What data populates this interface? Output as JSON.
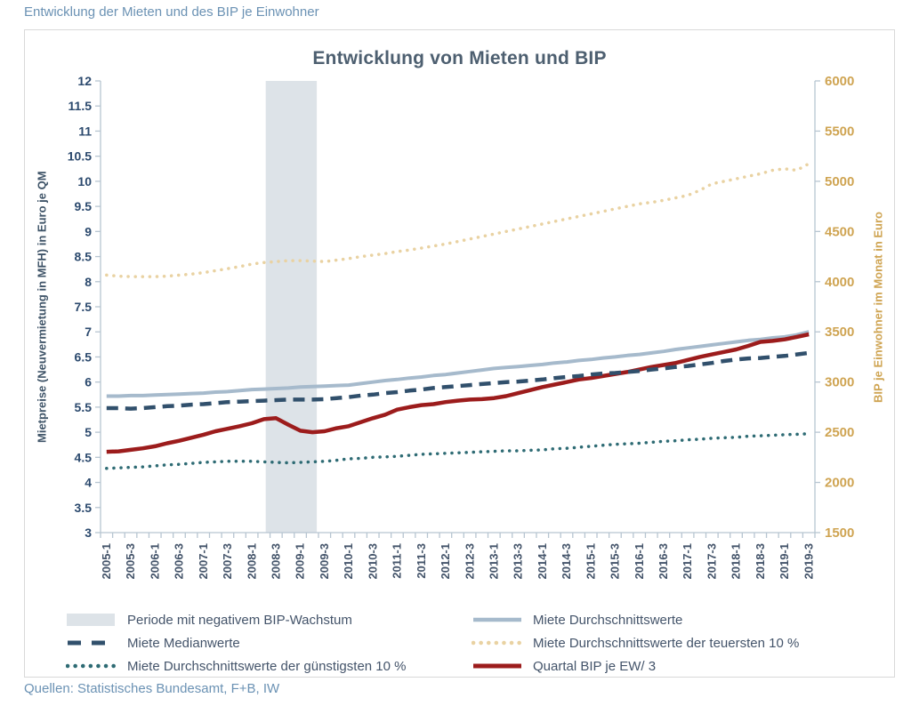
{
  "header": {
    "title": "Entwicklung der Mieten und des BIP je Einwohner"
  },
  "footer": {
    "source": "Quellen: Statistisches Bundesamt, F+B, IW"
  },
  "colors": {
    "accent_title": "#6b92b4",
    "chart_title": "#4d5f70",
    "axis_line": "#b7c5d1",
    "left_axis_text": "#2c4a6e",
    "right_axis_text": "#cfa452",
    "x_axis_text": "#44546a",
    "legend_text": "#44546a",
    "band": "#dde3e8",
    "series_blue": "#a6bacc",
    "series_navy": "#31506c",
    "series_tan": "#e9d2a2",
    "series_teal": "#2e6b74",
    "series_red": "#9c1c1c",
    "frame_border": "#d9d9d9"
  },
  "chart_data": {
    "type": "line",
    "title": "Entwicklung von Mieten und BIP",
    "ylabel_left": "Mietpreise (Neuvermietung in MFH) in Euro je QM",
    "ylabel_right": "BIP je Einwohner im Monat in Euro",
    "ylim_left": [
      3,
      12
    ],
    "ytick_step_left": 0.5,
    "ylim_right": [
      1500,
      6000
    ],
    "ytick_step_right": 500,
    "x_label_every": 2,
    "grid": false,
    "legend_position": "bottom",
    "quarters": [
      "2005-1",
      "2005-2",
      "2005-3",
      "2005-4",
      "2006-1",
      "2006-2",
      "2006-3",
      "2006-4",
      "2007-1",
      "2007-2",
      "2007-3",
      "2007-4",
      "2008-1",
      "2008-2",
      "2008-3",
      "2008-4",
      "2009-1",
      "2009-2",
      "2009-3",
      "2009-4",
      "2010-1",
      "2010-2",
      "2010-3",
      "2010-4",
      "2011-1",
      "2011-2",
      "2011-3",
      "2011-4",
      "2012-1",
      "2012-2",
      "2012-3",
      "2012-4",
      "2013-1",
      "2013-2",
      "2013-3",
      "2013-4",
      "2014-1",
      "2014-2",
      "2014-3",
      "2014-4",
      "2015-1",
      "2015-2",
      "2015-3",
      "2015-4",
      "2016-1",
      "2016-2",
      "2016-3",
      "2016-4",
      "2017-1",
      "2017-2",
      "2017-3",
      "2017-4",
      "2018-1",
      "2018-2",
      "2018-3",
      "2018-4",
      "2019-1",
      "2019-2",
      "2019-3"
    ],
    "recession_band": {
      "label": "Periode mit negativem BIP-Wachstum",
      "from": "2008-2",
      "to": "2009-2"
    },
    "series": [
      {
        "id": "teuerste10",
        "name": "Miete Durchschnittswerte der teuersten 10 %",
        "axis": "left",
        "unit": "Euro je QM",
        "style": "dotted",
        "color": "#e9d2a2",
        "width": 3.5,
        "values": [
          8.13,
          8.11,
          8.1,
          8.1,
          8.1,
          8.11,
          8.13,
          8.15,
          8.18,
          8.22,
          8.26,
          8.3,
          8.35,
          8.38,
          8.4,
          8.42,
          8.42,
          8.41,
          8.4,
          8.43,
          8.46,
          8.5,
          8.53,
          8.56,
          8.6,
          8.63,
          8.67,
          8.71,
          8.75,
          8.8,
          8.85,
          8.9,
          8.95,
          9.0,
          9.05,
          9.1,
          9.15,
          9.2,
          9.25,
          9.3,
          9.35,
          9.4,
          9.45,
          9.5,
          9.55,
          9.58,
          9.62,
          9.67,
          9.72,
          9.82,
          9.95,
          10.0,
          10.05,
          10.1,
          10.15,
          10.22,
          10.25,
          10.22,
          10.35
        ]
      },
      {
        "id": "guenstigste10",
        "name": "Miete Durchschnittswerte der günstigsten 10 %",
        "axis": "left",
        "unit": "Euro je QM",
        "style": "dotted",
        "color": "#2e6b74",
        "width": 3.5,
        "values": [
          4.28,
          4.29,
          4.3,
          4.31,
          4.33,
          4.35,
          4.36,
          4.38,
          4.4,
          4.41,
          4.42,
          4.42,
          4.42,
          4.41,
          4.4,
          4.39,
          4.4,
          4.41,
          4.42,
          4.44,
          4.47,
          4.48,
          4.5,
          4.51,
          4.52,
          4.54,
          4.56,
          4.57,
          4.58,
          4.59,
          4.6,
          4.61,
          4.62,
          4.63,
          4.63,
          4.64,
          4.65,
          4.67,
          4.68,
          4.7,
          4.72,
          4.74,
          4.76,
          4.77,
          4.78,
          4.8,
          4.82,
          4.83,
          4.85,
          4.86,
          4.88,
          4.89,
          4.9,
          4.92,
          4.93,
          4.94,
          4.95,
          4.96,
          4.97
        ]
      },
      {
        "id": "durchschnitt",
        "name": "Miete Durchschnittswerte",
        "axis": "left",
        "unit": "Euro je QM",
        "style": "solid",
        "color": "#a6bacc",
        "width": 4,
        "values": [
          5.72,
          5.72,
          5.73,
          5.73,
          5.74,
          5.75,
          5.76,
          5.77,
          5.78,
          5.8,
          5.81,
          5.83,
          5.85,
          5.86,
          5.87,
          5.88,
          5.9,
          5.91,
          5.92,
          5.93,
          5.94,
          5.97,
          6.0,
          6.03,
          6.05,
          6.08,
          6.1,
          6.13,
          6.15,
          6.18,
          6.21,
          6.24,
          6.27,
          6.29,
          6.31,
          6.33,
          6.35,
          6.38,
          6.4,
          6.43,
          6.45,
          6.48,
          6.5,
          6.53,
          6.55,
          6.58,
          6.61,
          6.65,
          6.68,
          6.71,
          6.74,
          6.77,
          6.8,
          6.83,
          6.85,
          6.88,
          6.9,
          6.94,
          7.0
        ]
      },
      {
        "id": "bip",
        "name": "Quartal BIP je EW/ 3",
        "axis": "right",
        "unit": "Euro im Monat",
        "style": "solid",
        "color": "#9c1c1c",
        "width": 4.5,
        "values": [
          2305,
          2310,
          2325,
          2340,
          2360,
          2390,
          2415,
          2445,
          2475,
          2510,
          2535,
          2560,
          2590,
          2630,
          2640,
          2575,
          2515,
          2500,
          2510,
          2540,
          2560,
          2600,
          2640,
          2675,
          2725,
          2750,
          2770,
          2780,
          2800,
          2815,
          2825,
          2830,
          2840,
          2860,
          2890,
          2920,
          2950,
          2975,
          3000,
          3025,
          3040,
          3060,
          3080,
          3100,
          3125,
          3150,
          3170,
          3190,
          3220,
          3250,
          3275,
          3300,
          3325,
          3360,
          3400,
          3410,
          3425,
          3450,
          3475
        ]
      },
      {
        "id": "median",
        "name": "Miete Medianwerte",
        "axis": "left",
        "unit": "Euro je QM",
        "style": "dashed",
        "color": "#31506c",
        "width": 4.5,
        "values": [
          5.48,
          5.48,
          5.47,
          5.48,
          5.5,
          5.52,
          5.53,
          5.55,
          5.56,
          5.58,
          5.6,
          5.61,
          5.62,
          5.63,
          5.64,
          5.65,
          5.65,
          5.65,
          5.66,
          5.68,
          5.7,
          5.73,
          5.75,
          5.78,
          5.8,
          5.83,
          5.85,
          5.88,
          5.9,
          5.92,
          5.94,
          5.96,
          5.98,
          6.0,
          6.01,
          6.03,
          6.05,
          6.08,
          6.1,
          6.12,
          6.15,
          6.17,
          6.18,
          6.2,
          6.22,
          6.25,
          6.27,
          6.3,
          6.32,
          6.35,
          6.38,
          6.42,
          6.45,
          6.47,
          6.48,
          6.5,
          6.52,
          6.55,
          6.58
        ]
      }
    ],
    "legend": {
      "left": [
        {
          "swatch": "band",
          "label": "Periode mit negativem BIP-Wachstum"
        },
        {
          "swatch": "dashed-navy",
          "label": "Miete Medianwerte"
        },
        {
          "swatch": "dotted-teal",
          "label": "Miete Durchschnittswerte der günstigsten 10 %"
        }
      ],
      "right": [
        {
          "swatch": "solid-blue",
          "label": "Miete Durchschnittswerte"
        },
        {
          "swatch": "dotted-tan",
          "label": "Miete Durchschnittswerte der teuersten 10 %"
        },
        {
          "swatch": "solid-red",
          "label": "Quartal BIP je EW/ 3"
        }
      ]
    }
  }
}
